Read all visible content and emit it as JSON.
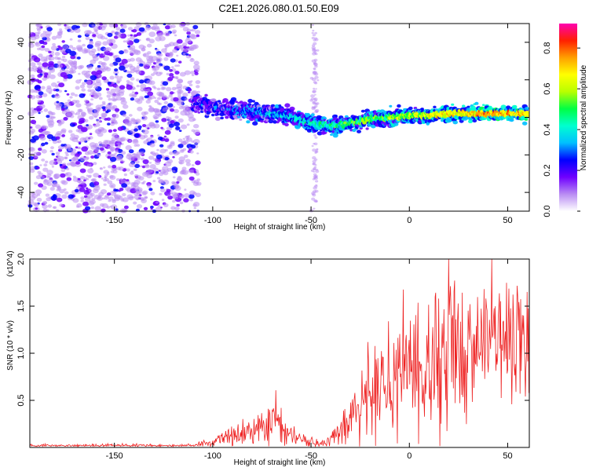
{
  "title": "C2E1.2026.080.01.50.E09",
  "chart_data": [
    {
      "type": "heatmap",
      "name": "spectrogram",
      "xlabel": "Height of straight line (km)",
      "ylabel": "Frequency (Hz)",
      "xlim": [
        -193,
        61
      ],
      "ylim": [
        -50,
        50
      ],
      "xticks": [
        -150,
        -100,
        -50,
        0,
        50
      ],
      "yticks": [
        -40,
        -20,
        0,
        20,
        40
      ],
      "colorbar": {
        "label": "Normalized spectral amplitude",
        "range": [
          0.0,
          0.92
        ],
        "ticks": [
          0.0,
          0.2,
          0.4,
          0.6,
          0.8
        ],
        "colormap": [
          "#ffffff",
          "#b98cf3",
          "#6f00ff",
          "#0000ff",
          "#00bfff",
          "#00ffd0",
          "#00ff44",
          "#b8ff00",
          "#ffff00",
          "#ffa000",
          "#ff2000",
          "#ff00b0"
        ]
      },
      "ridge": {
        "x": [
          -110,
          -100,
          -90,
          -80,
          -70,
          -60,
          -50,
          -45,
          -40,
          -30,
          -20,
          -10,
          0,
          10,
          20,
          30,
          40,
          50,
          60
        ],
        "y": [
          8,
          5,
          4,
          3,
          2,
          0,
          -3,
          -4,
          -5,
          -3,
          -1,
          0,
          1,
          1,
          2,
          2,
          2,
          2,
          2
        ]
      },
      "noise_region_x": [
        -193,
        -107
      ],
      "vertical_streak_x": -48
    },
    {
      "type": "line",
      "name": "snr",
      "xlabel": "Height of straight line (km)",
      "ylabel": "SNR (10 * v/v)",
      "yscale_note": "(x10^4)",
      "xlim": [
        -193,
        61
      ],
      "ylim": [
        0,
        2.0
      ],
      "xticks": [
        -150,
        -100,
        -50,
        0,
        50
      ],
      "yticks": [
        0.5,
        1.0,
        1.5,
        2.0
      ],
      "series": [
        {
          "color": "#ee2222",
          "envelope": {
            "x": [
              -193,
              -110,
              -100,
              -90,
              -80,
              -70,
              -65,
              -60,
              -55,
              -50,
              -45,
              -40,
              -30,
              -20,
              -10,
              0,
              10,
              20,
              30,
              40,
              50,
              60
            ],
            "mean": [
              0.02,
              0.02,
              0.06,
              0.12,
              0.2,
              0.26,
              0.24,
              0.14,
              0.08,
              0.06,
              0.05,
              0.08,
              0.3,
              0.55,
              0.7,
              0.8,
              0.95,
              1.05,
              1.1,
              1.1,
              1.15,
              1.15
            ],
            "spread": [
              0.01,
              0.01,
              0.03,
              0.06,
              0.1,
              0.14,
              0.14,
              0.08,
              0.05,
              0.04,
              0.03,
              0.06,
              0.2,
              0.35,
              0.4,
              0.45,
              0.5,
              0.55,
              0.5,
              0.5,
              0.5,
              0.5
            ]
          }
        }
      ]
    }
  ]
}
